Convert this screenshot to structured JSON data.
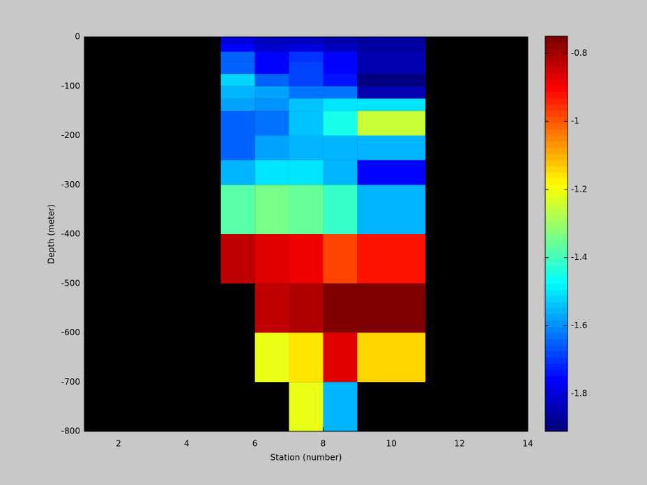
{
  "chart_data": {
    "type": "heatmap",
    "xlabel": "Station (number)",
    "ylabel": "Depth (meter)",
    "xlim": [
      1,
      14
    ],
    "xticks": [
      2,
      4,
      6,
      8,
      10,
      12,
      14
    ],
    "ylim": [
      -800,
      0
    ],
    "yticks": [
      0,
      -100,
      -200,
      -300,
      -400,
      -500,
      -600,
      -700,
      -800
    ],
    "x_edges": [
      5,
      6,
      7,
      8,
      9,
      11
    ],
    "y_edges": [
      0,
      -15,
      -30,
      -50,
      -75,
      -100,
      -125,
      -150,
      -200,
      -250,
      -300,
      -400,
      -500,
      -600,
      -700,
      -800
    ],
    "values": [
      [
        -1.79,
        -1.83,
        -1.82,
        -1.84,
        -1.86
      ],
      [
        -1.75,
        -1.81,
        -1.8,
        -1.83,
        -1.86
      ],
      [
        -1.64,
        -1.75,
        -1.7,
        -1.75,
        -1.85
      ],
      [
        -1.64,
        -1.75,
        -1.68,
        -1.76,
        -1.85
      ],
      [
        -1.52,
        -1.64,
        -1.68,
        -1.74,
        -1.9
      ],
      [
        -1.55,
        -1.58,
        -1.62,
        -1.62,
        -1.85
      ],
      [
        -1.58,
        -1.6,
        -1.54,
        -1.51,
        -1.51
      ],
      [
        -1.64,
        -1.62,
        -1.53,
        -1.44,
        -1.25
      ],
      [
        -1.64,
        -1.58,
        -1.55,
        -1.55,
        -1.55
      ],
      [
        -1.55,
        -1.5,
        -1.5,
        -1.55,
        -1.75
      ],
      [
        -1.37,
        -1.34,
        -1.36,
        -1.42,
        -1.56
      ],
      [
        -0.83,
        -0.87,
        -0.89,
        -0.97,
        -0.92
      ],
      [
        null,
        -0.84,
        -0.81,
        -0.76,
        -0.76
      ],
      [
        null,
        -1.22,
        -1.16,
        -0.87,
        -1.14
      ],
      [
        null,
        null,
        -1.22,
        -1.56,
        null
      ]
    ],
    "colormap": "jet",
    "clim": [
      -1.91,
      -0.75
    ],
    "cticks": [
      -0.8,
      -1,
      -1.2,
      -1.4,
      -1.6,
      -1.8
    ],
    "nan_color": "#000000"
  }
}
